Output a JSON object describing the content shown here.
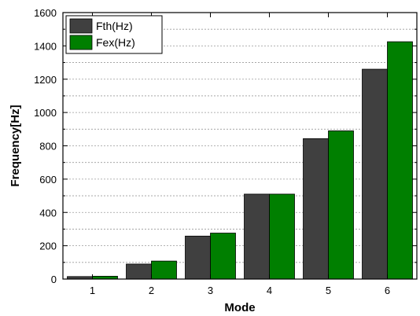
{
  "chart_data": {
    "type": "bar",
    "categories": [
      "1",
      "2",
      "3",
      "4",
      "5",
      "6"
    ],
    "series": [
      {
        "name": "Fth(Hz)",
        "color": "#404040",
        "values": [
          15,
          90,
          258,
          510,
          843,
          1260
        ]
      },
      {
        "name": "Fex(Hz)",
        "color": "#007f00",
        "values": [
          17,
          108,
          276,
          510,
          890,
          1425
        ]
      }
    ],
    "title": "",
    "xlabel": "Mode",
    "ylabel": "Frequency[Hz]",
    "ylim": [
      0,
      1600
    ],
    "yticks": [
      0,
      200,
      400,
      600,
      800,
      1000,
      1200,
      1400,
      1600
    ],
    "grid": true,
    "legend_position": "top-left"
  }
}
